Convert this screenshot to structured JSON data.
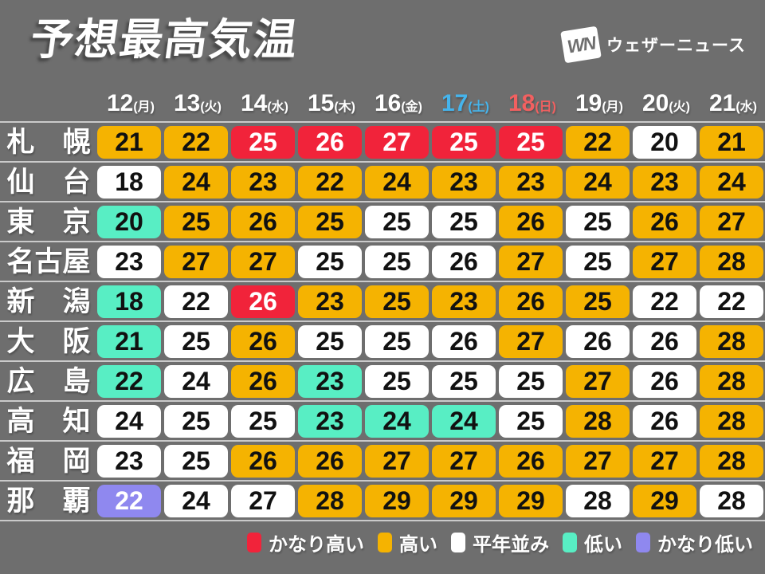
{
  "header": {
    "title": "予想最高気温",
    "logo_mark": "WN",
    "logo_text": "ウェザーニュース"
  },
  "palette": {
    "background": "#6e6e6e",
    "very_high": "#f1233a",
    "high": "#f5b301",
    "normal": "#ffffff",
    "low": "#58eec4",
    "very_low": "#8f88ef",
    "text_on_dark_cell": "#ffffff",
    "text_on_light_cell": "#111111",
    "date_default": "#ffffff",
    "saturday": "#45b4ec",
    "sunday": "#f26060",
    "divider": "#e1e1e1"
  },
  "chart_data": {
    "type": "heatmap",
    "title": "予想最高気温",
    "unit": "°C",
    "legend_position": "bottom-right",
    "dates": [
      {
        "day": "12",
        "weekday": "(月)",
        "color_key": "date_default"
      },
      {
        "day": "13",
        "weekday": "(火)",
        "color_key": "date_default"
      },
      {
        "day": "14",
        "weekday": "(水)",
        "color_key": "date_default"
      },
      {
        "day": "15",
        "weekday": "(木)",
        "color_key": "date_default"
      },
      {
        "day": "16",
        "weekday": "(金)",
        "color_key": "date_default"
      },
      {
        "day": "17",
        "weekday": "(土)",
        "color_key": "saturday"
      },
      {
        "day": "18",
        "weekday": "(日)",
        "color_key": "sunday"
      },
      {
        "day": "19",
        "weekday": "(月)",
        "color_key": "date_default"
      },
      {
        "day": "20",
        "weekday": "(火)",
        "color_key": "date_default"
      },
      {
        "day": "21",
        "weekday": "(水)",
        "color_key": "date_default"
      }
    ],
    "rows": [
      {
        "city": "札幌",
        "display": "札　幌",
        "temps": [
          21,
          22,
          25,
          26,
          27,
          25,
          25,
          22,
          20,
          21
        ],
        "levels": [
          "high",
          "high",
          "very_high",
          "very_high",
          "very_high",
          "very_high",
          "very_high",
          "high",
          "normal",
          "high"
        ]
      },
      {
        "city": "仙台",
        "display": "仙　台",
        "temps": [
          18,
          24,
          23,
          22,
          24,
          23,
          23,
          24,
          23,
          24
        ],
        "levels": [
          "normal",
          "high",
          "high",
          "high",
          "high",
          "high",
          "high",
          "high",
          "high",
          "high"
        ]
      },
      {
        "city": "東京",
        "display": "東　京",
        "temps": [
          20,
          25,
          26,
          25,
          25,
          25,
          26,
          25,
          26,
          27
        ],
        "levels": [
          "low",
          "high",
          "high",
          "high",
          "normal",
          "normal",
          "high",
          "normal",
          "high",
          "high"
        ]
      },
      {
        "city": "名古屋",
        "display": "名古屋",
        "temps": [
          23,
          27,
          27,
          25,
          25,
          26,
          27,
          25,
          27,
          28
        ],
        "levels": [
          "normal",
          "high",
          "high",
          "normal",
          "normal",
          "normal",
          "high",
          "normal",
          "high",
          "high"
        ]
      },
      {
        "city": "新潟",
        "display": "新　潟",
        "temps": [
          18,
          22,
          26,
          23,
          25,
          23,
          26,
          25,
          22,
          22
        ],
        "levels": [
          "low",
          "normal",
          "very_high",
          "high",
          "high",
          "high",
          "high",
          "high",
          "normal",
          "normal"
        ]
      },
      {
        "city": "大阪",
        "display": "大　阪",
        "temps": [
          21,
          25,
          26,
          25,
          25,
          26,
          27,
          26,
          26,
          28
        ],
        "levels": [
          "low",
          "normal",
          "high",
          "normal",
          "normal",
          "normal",
          "high",
          "normal",
          "normal",
          "high"
        ]
      },
      {
        "city": "広島",
        "display": "広　島",
        "temps": [
          22,
          24,
          26,
          23,
          25,
          25,
          25,
          27,
          26,
          28
        ],
        "levels": [
          "low",
          "normal",
          "high",
          "low",
          "normal",
          "normal",
          "normal",
          "high",
          "normal",
          "high"
        ]
      },
      {
        "city": "高知",
        "display": "高　知",
        "temps": [
          24,
          25,
          25,
          23,
          24,
          24,
          25,
          28,
          26,
          28
        ],
        "levels": [
          "normal",
          "normal",
          "normal",
          "low",
          "low",
          "low",
          "normal",
          "high",
          "normal",
          "high"
        ]
      },
      {
        "city": "福岡",
        "display": "福　岡",
        "temps": [
          23,
          25,
          26,
          26,
          27,
          27,
          26,
          27,
          27,
          28
        ],
        "levels": [
          "normal",
          "normal",
          "high",
          "high",
          "high",
          "high",
          "high",
          "high",
          "high",
          "high"
        ]
      },
      {
        "city": "那覇",
        "display": "那　覇",
        "temps": [
          22,
          24,
          27,
          28,
          29,
          29,
          29,
          28,
          29,
          28
        ],
        "levels": [
          "very_low",
          "normal",
          "normal",
          "high",
          "high",
          "high",
          "high",
          "normal",
          "high",
          "normal"
        ]
      }
    ]
  },
  "legend": {
    "items": [
      {
        "label": "かなり高い",
        "level": "very_high"
      },
      {
        "label": "高い",
        "level": "high"
      },
      {
        "label": "平年並み",
        "level": "normal"
      },
      {
        "label": "低い",
        "level": "low"
      },
      {
        "label": "かなり低い",
        "level": "very_low"
      }
    ]
  }
}
